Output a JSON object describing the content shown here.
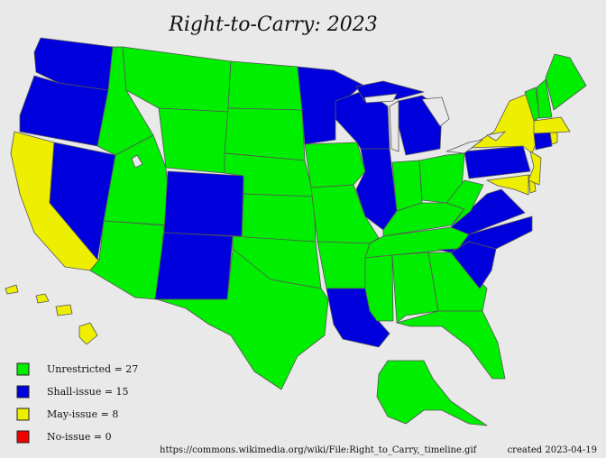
{
  "title": "Right-to-Carry: 2023",
  "legend": [
    {
      "label": "Unrestricted = 27",
      "color": "#00ee00"
    },
    {
      "label": "Shall-issue = 15",
      "color": "#0000dd"
    },
    {
      "label": "May-issue = 8",
      "color": "#eeee00"
    },
    {
      "label": "No-issue = 0",
      "color": "#ee0000"
    }
  ],
  "footer": {
    "source": "https://commons.wikimedia.org/wiki/File:Right_to_Carry,_timeline.gif",
    "created": "created 2023-04-19"
  }
}
